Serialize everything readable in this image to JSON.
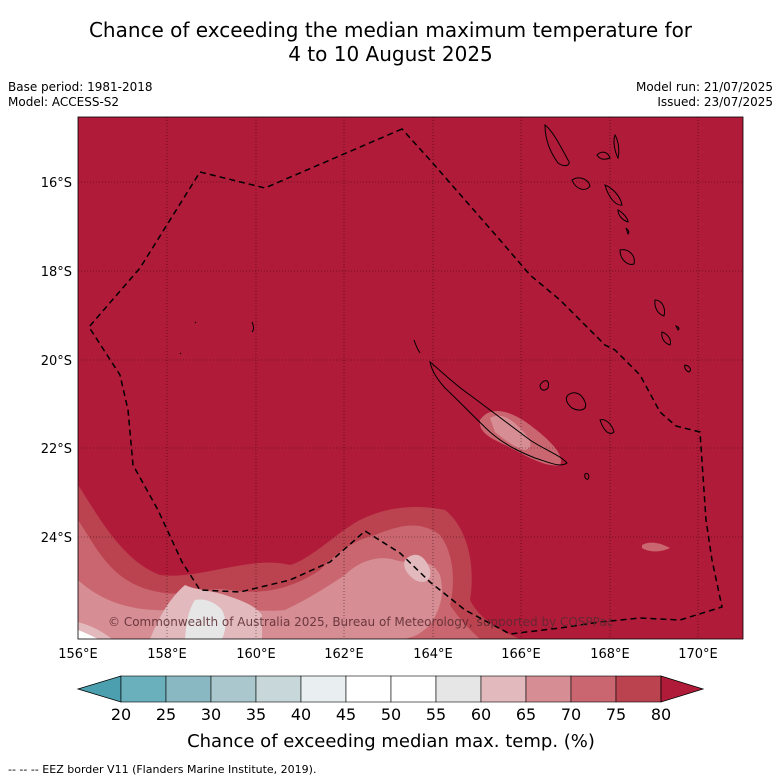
{
  "title_line1": "Chance of exceeding the median maximum temperature for",
  "title_line2": "4 to 10 August 2025",
  "base_period": "Base period: 1981-2018",
  "model": "Model: ACCESS-S2",
  "model_run": "Model run: 21/07/2025",
  "issued": "Issued: 23/07/2025",
  "y_ticks": [
    "16°S",
    "18°S",
    "20°S",
    "22°S",
    "24°S"
  ],
  "x_ticks": [
    "156°E",
    "158°E",
    "160°E",
    "162°E",
    "164°E",
    "166°E",
    "168°E",
    "170°E"
  ],
  "copyright": "© Commonwealth of Australia 2025, Bureau of Meteorology, supported by COSPPac",
  "colorbar": {
    "labels": [
      "20",
      "25",
      "30",
      "35",
      "40",
      "45",
      "50",
      "55",
      "60",
      "65",
      "70",
      "75",
      "80"
    ],
    "colors": [
      "#4b9fae",
      "#6aafbc",
      "#8ab8c2",
      "#a9c7cc",
      "#c8d8da",
      "#e9eff0",
      "#ffffff",
      "#ffffff",
      "#e6e6e6",
      "#e2b9bd",
      "#d68d93",
      "#c9666f",
      "#bb424f",
      "#b11b3a"
    ],
    "title": "Chance of exceeding median max. temp. (%)"
  },
  "footer": "-- -- -- EEZ border V11 (Flanders Marine Institute, 2019).",
  "colors": {
    "base_red": "#b11b3a"
  }
}
